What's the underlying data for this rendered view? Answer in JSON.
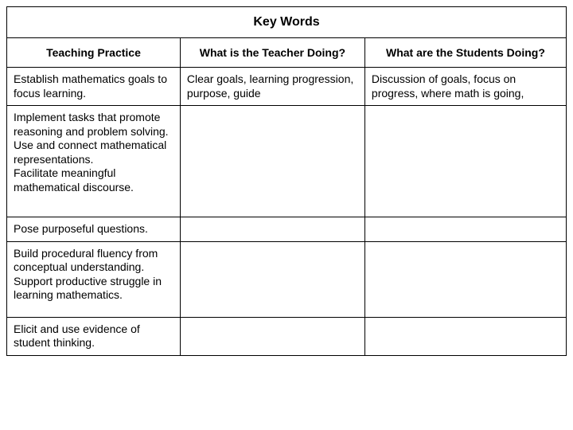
{
  "table": {
    "title": "Key Words",
    "columns": [
      "Teaching Practice",
      "What is the Teacher Doing?",
      "What are the Students Doing?"
    ],
    "rows": [
      {
        "practice": "Establish mathematics goals to focus learning.",
        "teacher": "Clear goals, learning progression, purpose, guide",
        "students": "Discussion of goals, focus on progress, where math is going,"
      },
      {
        "practice": "Implement tasks that promote reasoning and problem solving.\nUse and connect mathematical representations.\nFacilitate meaningful mathematical discourse.",
        "teacher": "",
        "students": ""
      },
      {
        "practice": "Pose purposeful questions.",
        "teacher": "",
        "students": ""
      },
      {
        "practice": "Build procedural fluency from conceptual understanding.\nSupport productive struggle in learning mathematics.",
        "teacher": "",
        "students": ""
      },
      {
        "practice": "Elicit and use evidence of student thinking.",
        "teacher": "",
        "students": ""
      }
    ]
  },
  "styling": {
    "type": "table",
    "border_color": "#000000",
    "background_color": "#ffffff",
    "text_color": "#000000",
    "title_fontsize": 16,
    "header_fontsize": 14,
    "body_fontsize": 14,
    "font_family": "Arial",
    "column_widths_pct": [
      31,
      33,
      36
    ]
  }
}
